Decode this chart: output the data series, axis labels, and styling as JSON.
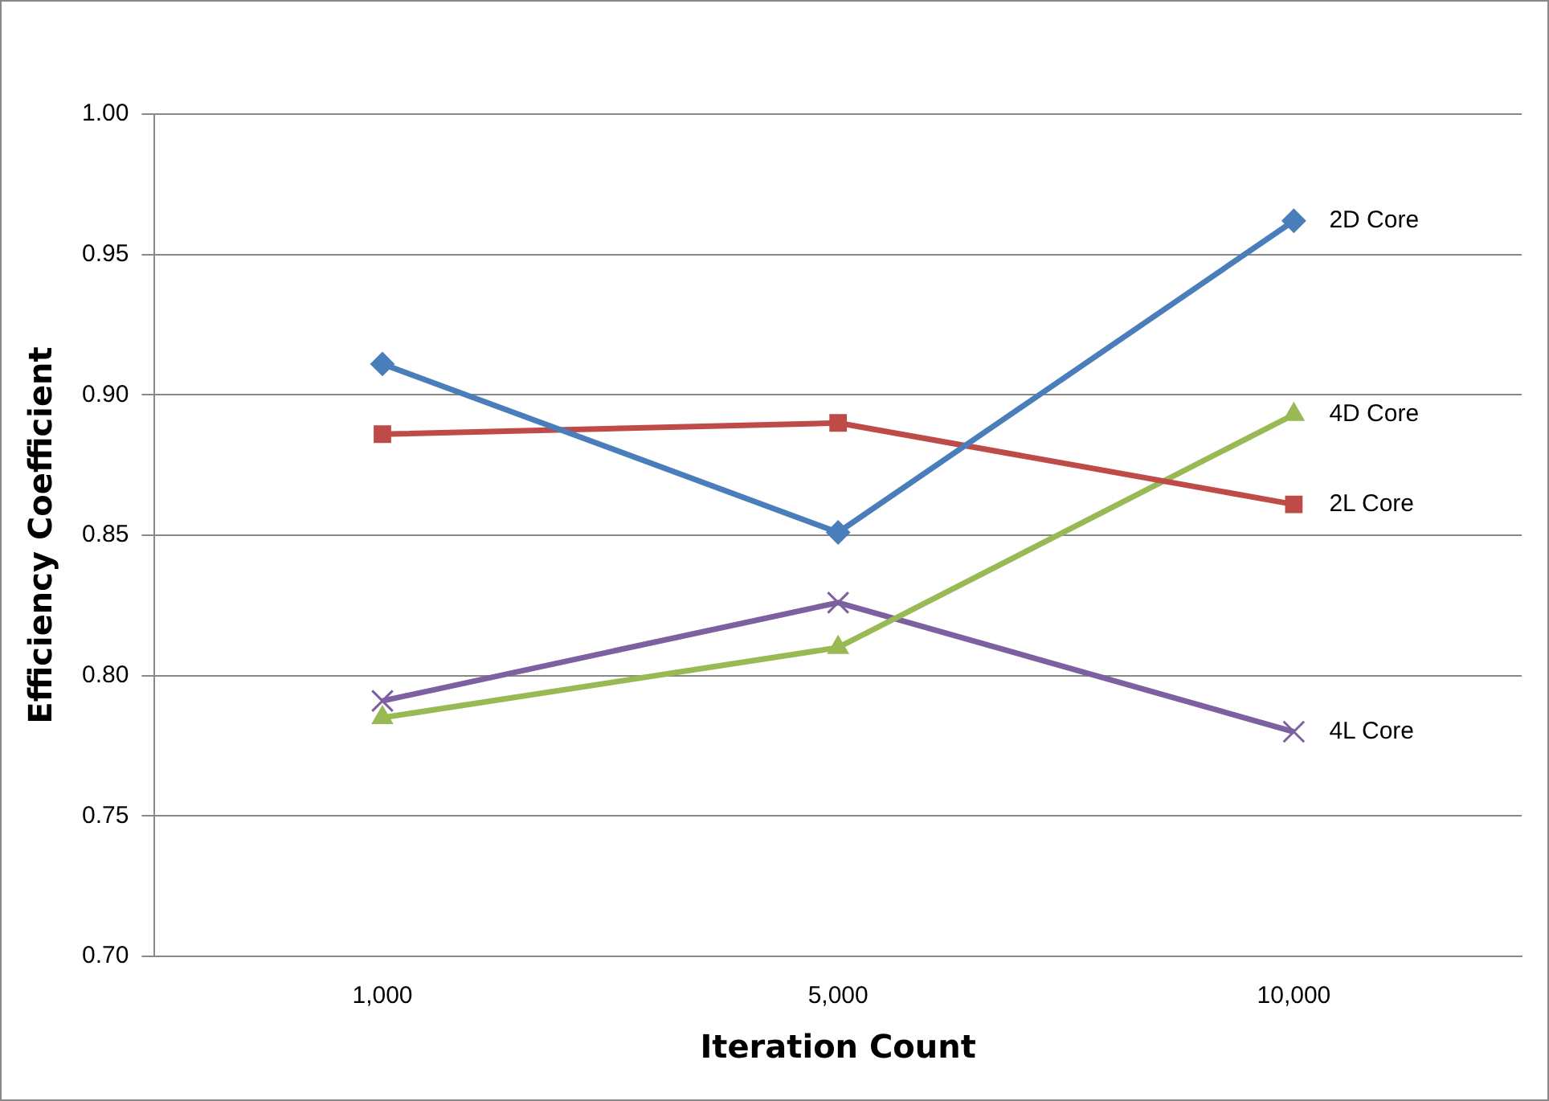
{
  "chart_data": {
    "type": "line",
    "xlabel": "Iteration Count",
    "ylabel": "Efficiency Coefficient",
    "categories": [
      "1,000",
      "5,000",
      "10,000"
    ],
    "ylim": [
      0.7,
      1.0
    ],
    "yticks": [
      {
        "value": 0.7,
        "label": "0.70"
      },
      {
        "value": 0.75,
        "label": "0.75"
      },
      {
        "value": 0.8,
        "label": "0.80"
      },
      {
        "value": 0.85,
        "label": "0.85"
      },
      {
        "value": 0.9,
        "label": "0.90"
      },
      {
        "value": 0.95,
        "label": "0.95"
      },
      {
        "value": 1.0,
        "label": "1.00"
      }
    ],
    "grid": "y",
    "legend": false,
    "line_style": "solid",
    "series": [
      {
        "name": "2D Core",
        "color": "#4a7ebb",
        "marker": "diamond",
        "values": [
          0.911,
          0.851,
          0.962
        ]
      },
      {
        "name": "2L Core",
        "color": "#be4b48",
        "marker": "square",
        "values": [
          0.886,
          0.89,
          0.861
        ]
      },
      {
        "name": "4D Core",
        "color": "#98b954",
        "marker": "triangle",
        "values": [
          0.785,
          0.81,
          0.893
        ]
      },
      {
        "name": "4L Core",
        "color": "#7d60a0",
        "marker": "cross",
        "values": [
          0.791,
          0.826,
          0.78
        ]
      }
    ]
  }
}
